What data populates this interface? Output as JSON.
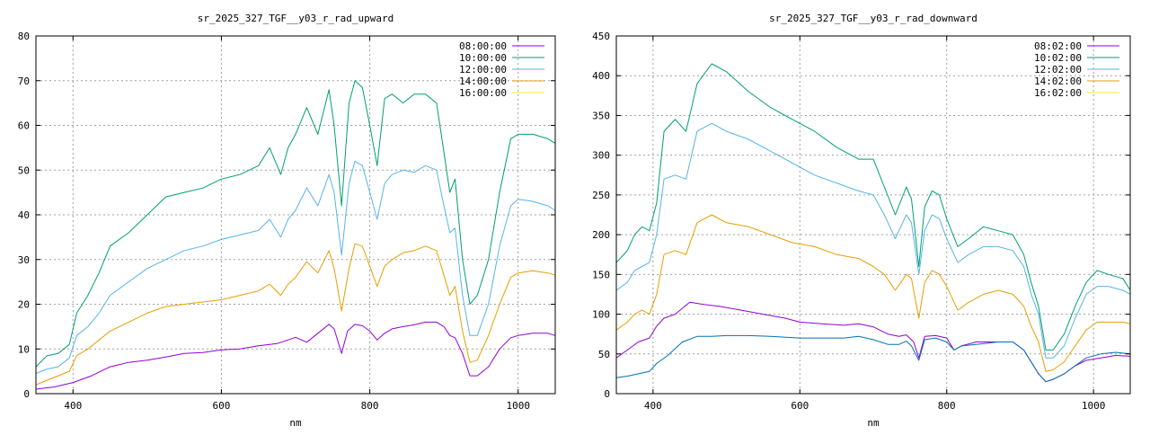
{
  "chart_data": [
    {
      "type": "line",
      "title": "sr_2025_327_TGF__y03_r_rad_upward",
      "xlabel": "nm",
      "ylabel": "",
      "xlim": [
        350,
        1050
      ],
      "ylim": [
        0,
        80
      ],
      "xticks": [
        400,
        600,
        800,
        1000
      ],
      "yticks": [
        0,
        10,
        20,
        30,
        40,
        50,
        60,
        70,
        80
      ],
      "grid": true,
      "legend": "top-right",
      "series": [
        {
          "name": "08:00:00",
          "color": "#9400d3",
          "x": [
            350,
            375,
            400,
            425,
            450,
            475,
            500,
            525,
            550,
            575,
            600,
            625,
            650,
            675,
            700,
            715,
            730,
            745,
            752,
            762,
            770,
            780,
            790,
            800,
            810,
            820,
            830,
            845,
            860,
            875,
            890,
            900,
            908,
            915,
            925,
            935,
            945,
            960,
            975,
            990,
            1000,
            1020,
            1040,
            1050
          ],
          "y": [
            1.0,
            1.5,
            2.5,
            4.0,
            6.0,
            7.0,
            7.5,
            8.2,
            9.0,
            9.2,
            9.8,
            10.0,
            10.7,
            11.2,
            12.6,
            11.5,
            13.5,
            15.5,
            14.5,
            9.0,
            14.0,
            15.5,
            15.2,
            14.0,
            12.0,
            13.5,
            14.5,
            15.0,
            15.4,
            16.0,
            16.0,
            15.0,
            13.0,
            12.5,
            9.0,
            4.0,
            4.0,
            6.0,
            10.0,
            12.5,
            13.0,
            13.5,
            13.5,
            13.0
          ]
        },
        {
          "name": "10:00:00",
          "color": "#009e73",
          "x": [
            350,
            365,
            380,
            395,
            405,
            420,
            435,
            450,
            475,
            500,
            525,
            550,
            575,
            600,
            625,
            650,
            665,
            680,
            690,
            700,
            715,
            730,
            745,
            752,
            762,
            772,
            780,
            790,
            800,
            810,
            820,
            830,
            845,
            860,
            875,
            890,
            900,
            908,
            915,
            925,
            935,
            945,
            960,
            975,
            990,
            1000,
            1020,
            1040,
            1050
          ],
          "y": [
            6,
            8.5,
            9,
            11,
            18,
            22,
            27,
            33,
            36,
            40,
            44,
            45,
            46,
            48,
            49,
            51,
            55,
            49,
            55,
            58,
            64,
            58,
            68,
            60,
            42,
            65,
            70,
            68.5,
            60,
            51,
            66,
            67,
            65,
            67,
            67,
            65,
            54,
            45,
            48,
            30,
            20,
            22,
            30,
            45,
            57,
            58,
            58,
            57,
            56
          ]
        },
        {
          "name": "12:00:00",
          "color": "#56b4e9",
          "x": [
            350,
            365,
            380,
            395,
            405,
            420,
            435,
            450,
            475,
            500,
            525,
            550,
            575,
            600,
            625,
            650,
            665,
            680,
            690,
            700,
            715,
            730,
            745,
            752,
            762,
            772,
            780,
            790,
            800,
            810,
            820,
            830,
            845,
            860,
            875,
            890,
            900,
            908,
            915,
            925,
            935,
            945,
            960,
            975,
            990,
            1000,
            1020,
            1040,
            1050
          ],
          "y": [
            4.5,
            5.5,
            6,
            8,
            13,
            15,
            18,
            22,
            25,
            28,
            30,
            32,
            33,
            34.5,
            35.5,
            36.5,
            39,
            35,
            39,
            41,
            46,
            42,
            49,
            45,
            31,
            47,
            52,
            51,
            45,
            39,
            47,
            49,
            50,
            49.5,
            51,
            50,
            42,
            36,
            37,
            22,
            13,
            13,
            20,
            33,
            42,
            43.5,
            43,
            42,
            41
          ]
        },
        {
          "name": "14:00:00",
          "color": "#e69f00",
          "x": [
            350,
            365,
            380,
            395,
            405,
            420,
            435,
            450,
            475,
            500,
            525,
            550,
            575,
            600,
            625,
            650,
            665,
            680,
            690,
            700,
            715,
            730,
            745,
            752,
            762,
            772,
            780,
            790,
            800,
            810,
            820,
            830,
            845,
            860,
            875,
            890,
            900,
            908,
            915,
            925,
            935,
            945,
            960,
            975,
            990,
            1000,
            1020,
            1040,
            1050
          ],
          "y": [
            2,
            3,
            4,
            5,
            8.5,
            10,
            12,
            14,
            16,
            18,
            19.5,
            20,
            20.5,
            21,
            22,
            23,
            24.5,
            22,
            24.5,
            26,
            29.5,
            27,
            32,
            28,
            18.5,
            28,
            33.5,
            33,
            28.5,
            24,
            28.5,
            30,
            31.5,
            32,
            33,
            32,
            26.5,
            22,
            24,
            14,
            7,
            7.5,
            13,
            20,
            26,
            27,
            27.5,
            27,
            26.5
          ]
        },
        {
          "name": "16:00:00",
          "color": "#f0e442",
          "x": [
            350,
            1050
          ],
          "y": [
            null,
            null
          ]
        }
      ]
    },
    {
      "type": "line",
      "title": "sr_2025_327_TGF__y03_r_rad_downward",
      "xlabel": "nm",
      "ylabel": "",
      "xlim": [
        350,
        1050
      ],
      "ylim": [
        0,
        450
      ],
      "xticks": [
        400,
        600,
        800,
        1000
      ],
      "yticks": [
        0,
        50,
        100,
        150,
        200,
        250,
        300,
        350,
        400,
        450
      ],
      "grid": true,
      "legend": "top-right",
      "series": [
        {
          "name": "08:02:00",
          "color": "#9400d3",
          "x": [
            350,
            365,
            380,
            395,
            405,
            415,
            430,
            450,
            470,
            490,
            520,
            550,
            580,
            600,
            630,
            660,
            680,
            700,
            720,
            735,
            745,
            755,
            762,
            770,
            785,
            800,
            810,
            820,
            840,
            870,
            890,
            905,
            915,
            925,
            935,
            945,
            960,
            975,
            990,
            1010,
            1030,
            1050
          ],
          "y": [
            45,
            55,
            65,
            70,
            85,
            95,
            100,
            115,
            112,
            110,
            105,
            100,
            95,
            90,
            88,
            86,
            88,
            84,
            75,
            72,
            74,
            65,
            45,
            72,
            73,
            70,
            55,
            60,
            65,
            65,
            65,
            55,
            40,
            25,
            15,
            18,
            25,
            35,
            42,
            45,
            48,
            47
          ]
        },
        {
          "name": "10:02:00",
          "color": "#009e73",
          "x": [
            350,
            365,
            375,
            385,
            395,
            405,
            415,
            430,
            445,
            460,
            480,
            500,
            530,
            560,
            590,
            620,
            650,
            680,
            700,
            715,
            730,
            745,
            752,
            762,
            770,
            780,
            790,
            800,
            815,
            830,
            850,
            870,
            890,
            905,
            915,
            925,
            935,
            945,
            960,
            975,
            990,
            1005,
            1020,
            1040,
            1050
          ],
          "y": [
            165,
            180,
            200,
            210,
            205,
            240,
            330,
            345,
            330,
            390,
            415,
            405,
            380,
            360,
            345,
            330,
            310,
            295,
            295,
            260,
            225,
            260,
            245,
            160,
            235,
            255,
            250,
            220,
            185,
            195,
            210,
            205,
            200,
            175,
            140,
            110,
            55,
            55,
            75,
            110,
            140,
            155,
            150,
            145,
            130
          ]
        },
        {
          "name": "12:02:00",
          "color": "#56b4e9",
          "x": [
            350,
            365,
            375,
            385,
            395,
            405,
            415,
            430,
            445,
            460,
            480,
            500,
            530,
            560,
            590,
            620,
            650,
            680,
            700,
            715,
            730,
            745,
            752,
            762,
            770,
            780,
            790,
            800,
            815,
            830,
            850,
            870,
            890,
            905,
            915,
            925,
            935,
            945,
            960,
            975,
            990,
            1005,
            1020,
            1040,
            1050
          ],
          "y": [
            130,
            140,
            155,
            160,
            165,
            200,
            270,
            275,
            270,
            330,
            340,
            330,
            320,
            305,
            290,
            275,
            265,
            255,
            250,
            225,
            195,
            225,
            215,
            150,
            205,
            225,
            220,
            195,
            165,
            175,
            185,
            185,
            180,
            160,
            125,
            100,
            45,
            45,
            60,
            95,
            125,
            135,
            135,
            130,
            125
          ]
        },
        {
          "name": "14:02:00",
          "color": "#e69f00",
          "x": [
            350,
            365,
            375,
            385,
            395,
            405,
            415,
            430,
            445,
            460,
            480,
            500,
            530,
            560,
            590,
            620,
            650,
            680,
            700,
            715,
            730,
            745,
            752,
            762,
            770,
            780,
            790,
            800,
            815,
            830,
            850,
            870,
            890,
            905,
            915,
            925,
            935,
            945,
            960,
            975,
            990,
            1005,
            1020,
            1040,
            1050
          ],
          "y": [
            80,
            90,
            100,
            105,
            100,
            125,
            175,
            180,
            175,
            215,
            225,
            215,
            210,
            200,
            190,
            185,
            175,
            170,
            160,
            150,
            130,
            150,
            145,
            95,
            140,
            155,
            150,
            135,
            105,
            115,
            125,
            130,
            125,
            110,
            85,
            65,
            28,
            30,
            40,
            60,
            80,
            90,
            90,
            90,
            88
          ]
        },
        {
          "name": "16:02:00",
          "color": "#f0e442",
          "x": [
            350,
            1050
          ],
          "y": [
            null,
            null
          ]
        },
        {
          "name": "",
          "color": "#0072b2",
          "x": [
            350,
            365,
            380,
            395,
            405,
            420,
            440,
            460,
            480,
            500,
            530,
            560,
            600,
            630,
            660,
            680,
            700,
            720,
            735,
            745,
            752,
            762,
            770,
            785,
            800,
            810,
            820,
            840,
            870,
            890,
            905,
            915,
            925,
            935,
            945,
            960,
            975,
            990,
            1010,
            1030,
            1050
          ],
          "y": [
            20,
            22,
            25,
            28,
            38,
            48,
            65,
            72,
            72,
            73,
            73,
            72,
            70,
            70,
            70,
            72,
            68,
            62,
            62,
            66,
            60,
            42,
            68,
            70,
            65,
            55,
            60,
            62,
            65,
            65,
            55,
            40,
            25,
            15,
            18,
            25,
            35,
            45,
            50,
            52,
            50
          ]
        }
      ]
    }
  ]
}
